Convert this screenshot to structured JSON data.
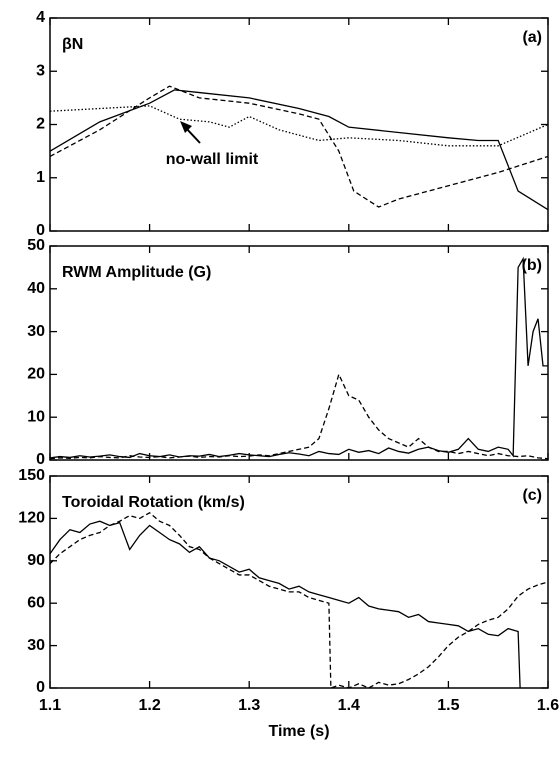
{
  "chart_data": [
    {
      "type": "line",
      "title": "βN",
      "panel_label": "(a)",
      "annotation": "no-wall limit",
      "xlim": [
        1.1,
        1.6
      ],
      "xticks": [
        1.1,
        1.2,
        1.3,
        1.4,
        1.5,
        1.6
      ],
      "show_xtick_labels": false,
      "ylim": [
        0,
        4
      ],
      "yticks": [
        0,
        1,
        2,
        3,
        4
      ],
      "series": [
        {
          "color": "#000000",
          "dash": "solid",
          "x": [
            1.1,
            1.15,
            1.2,
            1.225,
            1.25,
            1.3,
            1.35,
            1.38,
            1.4,
            1.45,
            1.5,
            1.53,
            1.55,
            1.57,
            1.6
          ],
          "values": [
            1.5,
            2.05,
            2.4,
            2.65,
            2.6,
            2.5,
            2.3,
            2.15,
            1.95,
            1.85,
            1.75,
            1.7,
            1.7,
            0.75,
            0.4
          ]
        },
        {
          "color": "#000000",
          "dash": "dashed",
          "x": [
            1.1,
            1.15,
            1.2,
            1.22,
            1.25,
            1.3,
            1.35,
            1.37,
            1.39,
            1.405,
            1.43,
            1.45,
            1.5,
            1.55,
            1.6
          ],
          "values": [
            1.4,
            1.9,
            2.5,
            2.72,
            2.5,
            2.4,
            2.2,
            2.1,
            1.5,
            0.75,
            0.45,
            0.6,
            0.85,
            1.1,
            1.4
          ]
        },
        {
          "color": "#000000",
          "dash": "dotted",
          "x": [
            1.1,
            1.15,
            1.2,
            1.23,
            1.26,
            1.28,
            1.3,
            1.33,
            1.37,
            1.4,
            1.45,
            1.5,
            1.55,
            1.6
          ],
          "values": [
            2.25,
            2.3,
            2.35,
            2.1,
            2.05,
            1.95,
            2.15,
            1.9,
            1.7,
            1.75,
            1.7,
            1.6,
            1.6,
            2.0
          ]
        }
      ]
    },
    {
      "type": "line",
      "title": "RWM Amplitude (G)",
      "panel_label": "(b)",
      "xlim": [
        1.1,
        1.6
      ],
      "xticks": [
        1.1,
        1.2,
        1.3,
        1.4,
        1.5,
        1.6
      ],
      "show_xtick_labels": false,
      "ylim": [
        0,
        50
      ],
      "yticks": [
        0,
        10,
        20,
        30,
        40,
        50
      ],
      "series": [
        {
          "color": "#000000",
          "dash": "solid",
          "x": [
            1.1,
            1.11,
            1.12,
            1.13,
            1.14,
            1.15,
            1.16,
            1.17,
            1.18,
            1.19,
            1.2,
            1.21,
            1.22,
            1.23,
            1.24,
            1.25,
            1.26,
            1.27,
            1.28,
            1.29,
            1.3,
            1.31,
            1.32,
            1.33,
            1.34,
            1.35,
            1.36,
            1.37,
            1.38,
            1.39,
            1.4,
            1.41,
            1.42,
            1.43,
            1.44,
            1.45,
            1.46,
            1.47,
            1.48,
            1.49,
            1.5,
            1.51,
            1.52,
            1.53,
            1.54,
            1.55,
            1.56,
            1.565,
            1.57,
            1.575,
            1.58,
            1.585,
            1.59,
            1.595,
            1.6
          ],
          "values": [
            0.5,
            0.8,
            0.6,
            1,
            0.7,
            0.9,
            1.2,
            0.8,
            0.6,
            1.5,
            1,
            0.8,
            1.2,
            0.7,
            1,
            0.9,
            1.3,
            0.8,
            1.1,
            1.5,
            1.2,
            1,
            0.8,
            1.3,
            1.7,
            1.4,
            1,
            2,
            1.5,
            1.3,
            2.5,
            1.8,
            2.2,
            1.5,
            2.8,
            2,
            1.6,
            2.5,
            3,
            2.2,
            1.8,
            2.5,
            5,
            2.5,
            2,
            3,
            2.5,
            1,
            45,
            47,
            22,
            30,
            33,
            22,
            22
          ]
        },
        {
          "color": "#000000",
          "dash": "dashed",
          "x": [
            1.1,
            1.11,
            1.12,
            1.13,
            1.14,
            1.15,
            1.16,
            1.17,
            1.18,
            1.19,
            1.2,
            1.21,
            1.22,
            1.23,
            1.24,
            1.25,
            1.26,
            1.27,
            1.28,
            1.29,
            1.3,
            1.31,
            1.32,
            1.33,
            1.34,
            1.35,
            1.36,
            1.37,
            1.38,
            1.39,
            1.4,
            1.41,
            1.42,
            1.43,
            1.44,
            1.45,
            1.46,
            1.47,
            1.48,
            1.49,
            1.5,
            1.51,
            1.52,
            1.53,
            1.54,
            1.55,
            1.56,
            1.57,
            1.58,
            1.59,
            1.6
          ],
          "values": [
            0.3,
            0.5,
            0.4,
            0.6,
            0.5,
            0.8,
            0.6,
            0.5,
            1,
            0.7,
            0.6,
            0.8,
            0.5,
            0.7,
            0.9,
            0.6,
            0.8,
            0.7,
            1,
            0.8,
            0.9,
            1.2,
            1,
            1.5,
            2,
            2.5,
            3,
            5,
            12,
            20,
            15,
            14,
            10,
            7,
            5,
            4,
            3,
            5,
            3,
            2,
            2,
            1.5,
            2,
            1.5,
            1,
            1.5,
            1,
            0.8,
            1,
            0.5,
            0.3
          ]
        }
      ]
    },
    {
      "type": "line",
      "title": "Toroidal Rotation (km/s)",
      "panel_label": "(c)",
      "xlabel": "Time (s)",
      "xlim": [
        1.1,
        1.6
      ],
      "xticks": [
        1.1,
        1.2,
        1.3,
        1.4,
        1.5,
        1.6
      ],
      "show_xtick_labels": true,
      "ylim": [
        0,
        150
      ],
      "yticks": [
        0,
        30,
        60,
        90,
        120,
        150
      ],
      "series": [
        {
          "color": "#000000",
          "dash": "solid",
          "x": [
            1.1,
            1.11,
            1.12,
            1.13,
            1.14,
            1.15,
            1.16,
            1.17,
            1.18,
            1.19,
            1.2,
            1.21,
            1.22,
            1.23,
            1.24,
            1.25,
            1.26,
            1.27,
            1.28,
            1.29,
            1.3,
            1.31,
            1.32,
            1.33,
            1.34,
            1.35,
            1.36,
            1.37,
            1.38,
            1.39,
            1.4,
            1.41,
            1.42,
            1.43,
            1.44,
            1.45,
            1.46,
            1.47,
            1.48,
            1.49,
            1.5,
            1.51,
            1.52,
            1.53,
            1.54,
            1.55,
            1.56,
            1.57,
            1.572
          ],
          "values": [
            95,
            105,
            112,
            110,
            116,
            118,
            115,
            117,
            98,
            108,
            115,
            110,
            105,
            102,
            96,
            100,
            92,
            90,
            86,
            82,
            84,
            78,
            76,
            74,
            70,
            72,
            68,
            66,
            64,
            62,
            60,
            64,
            58,
            56,
            55,
            54,
            50,
            52,
            47,
            46,
            45,
            44,
            40,
            42,
            38,
            37,
            42,
            40,
            0
          ]
        },
        {
          "color": "#000000",
          "dash": "dashed",
          "x": [
            1.1,
            1.11,
            1.12,
            1.13,
            1.14,
            1.15,
            1.16,
            1.17,
            1.18,
            1.19,
            1.2,
            1.21,
            1.22,
            1.23,
            1.24,
            1.25,
            1.26,
            1.27,
            1.28,
            1.29,
            1.3,
            1.31,
            1.32,
            1.33,
            1.34,
            1.35,
            1.36,
            1.37,
            1.38,
            1.382,
            1.39,
            1.4,
            1.41,
            1.42,
            1.43,
            1.44,
            1.45,
            1.46,
            1.47,
            1.48,
            1.49,
            1.5,
            1.51,
            1.52,
            1.53,
            1.54,
            1.55,
            1.56,
            1.57,
            1.58,
            1.59,
            1.6
          ],
          "values": [
            88,
            95,
            100,
            105,
            108,
            110,
            115,
            118,
            122,
            120,
            124,
            118,
            115,
            108,
            100,
            98,
            92,
            88,
            84,
            80,
            80,
            76,
            72,
            70,
            68,
            68,
            64,
            62,
            60,
            0,
            2,
            0,
            3,
            0,
            4,
            2,
            3,
            6,
            10,
            15,
            22,
            30,
            36,
            40,
            45,
            48,
            50,
            56,
            65,
            70,
            73,
            75
          ]
        }
      ]
    }
  ]
}
